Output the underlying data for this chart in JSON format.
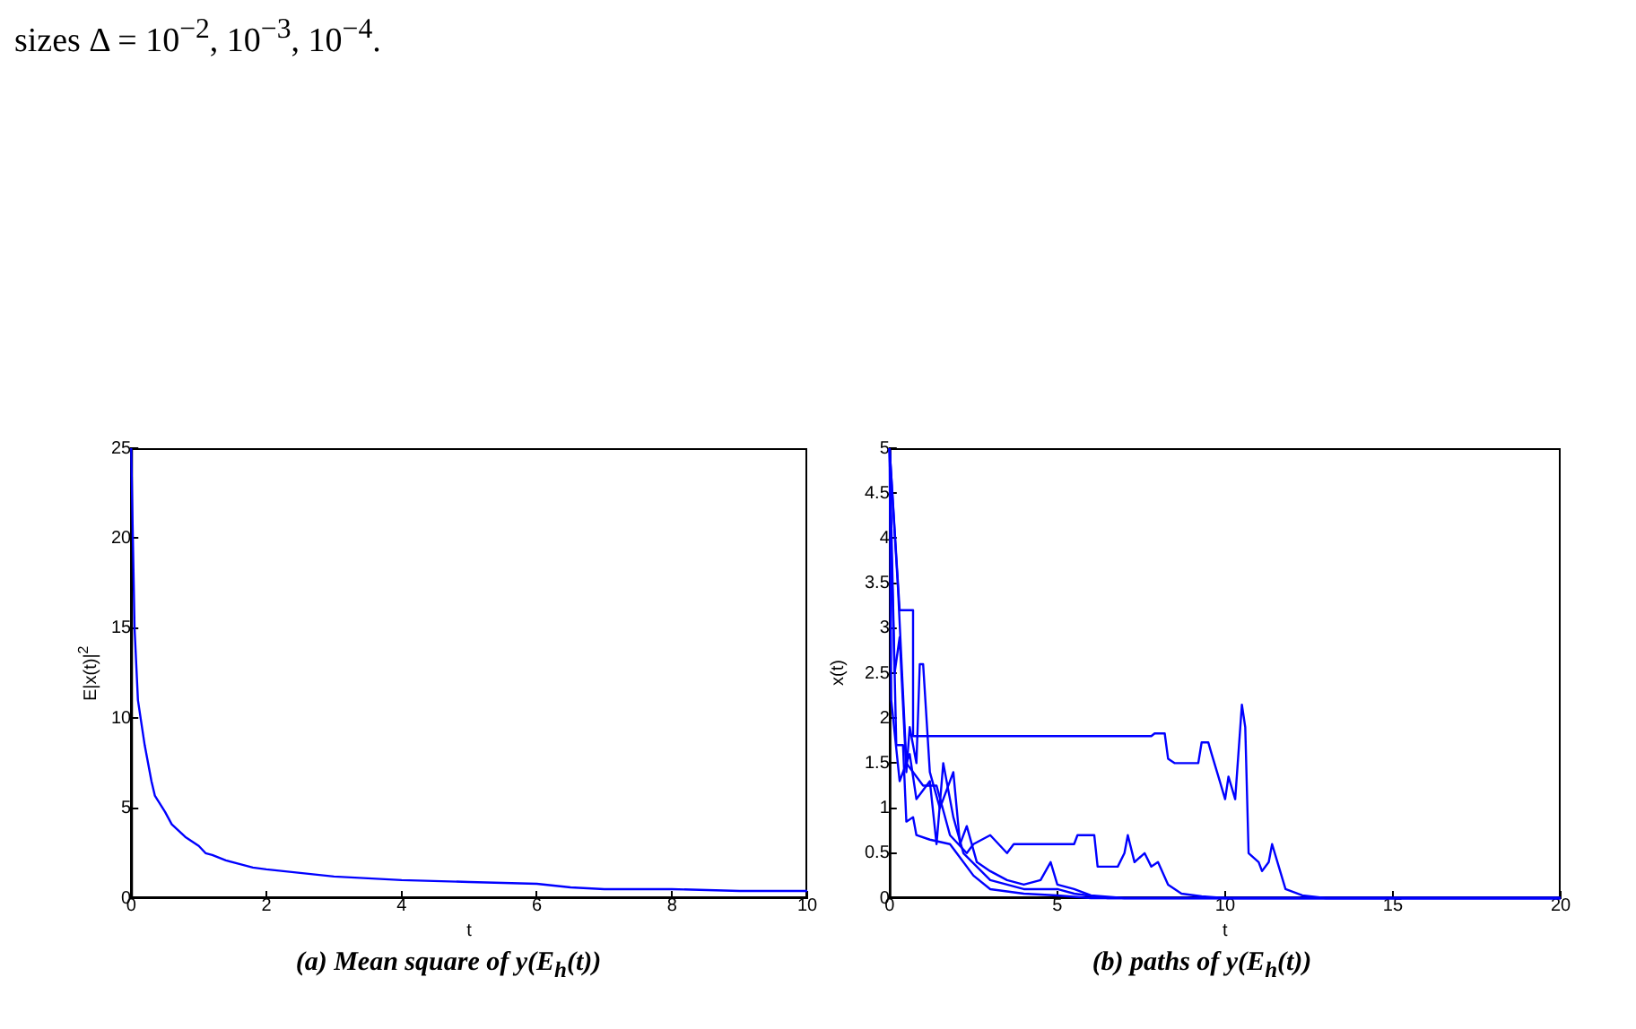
{
  "chart_data": [
    {
      "type": "line",
      "title": "(a) Mean square of y(E$_{h}$(t))",
      "xlabel": "t",
      "ylabel": "E|x(t)|$^{2}$",
      "annotations": [
        "sizes Δ = 10$^{−2}$,  10$^{−3}$,  10$^{−4}$."
      ],
      "xlim": [
        0,
        10
      ],
      "ylim": [
        0,
        25
      ],
      "xticks": [
        0,
        2,
        4,
        6,
        8,
        10
      ],
      "yticks": [
        0,
        5,
        10,
        15,
        20,
        25
      ],
      "grid": false,
      "legend": false,
      "marker": "none",
      "series": [
        {
          "color": "#0000ff",
          "x": [
            0,
            0.05,
            0.1,
            0.2,
            0.3,
            0.35,
            0.5,
            0.6,
            0.8,
            1.0,
            1.1,
            1.2,
            1.4,
            1.6,
            1.8,
            2,
            2.5,
            3,
            3.5,
            4,
            5,
            6,
            6.5,
            7,
            8,
            9,
            10
          ],
          "values": [
            25,
            15,
            11,
            8.5,
            6.5,
            5.7,
            4.8,
            4.1,
            3.4,
            2.9,
            2.5,
            2.4,
            2.1,
            1.9,
            1.7,
            1.6,
            1.4,
            1.2,
            1.1,
            1.0,
            0.9,
            0.8,
            0.6,
            0.5,
            0.5,
            0.4,
            0.4
          ]
        }
      ]
    },
    {
      "type": "line",
      "title": "(b) paths of y(E$_{h}$(t))",
      "xlabel": "t",
      "ylabel": "x(t)",
      "xlim": [
        0,
        20
      ],
      "ylim": [
        0,
        5
      ],
      "xticks": [
        0,
        5,
        10,
        15,
        20
      ],
      "yticks": [
        0,
        0.5,
        1,
        1.5,
        2,
        2.5,
        3,
        3.5,
        4,
        4.5,
        5
      ],
      "grid": false,
      "legend": false,
      "marker": "none",
      "series": [
        {
          "color": "#0000ff",
          "x": [
            0,
            0.3,
            0.7,
            0.7,
            7.8,
            7.9,
            8.2,
            8.3,
            8.5,
            9.2,
            9.3,
            9.5,
            9.6,
            9.8,
            10,
            10.1,
            10.3,
            10.5,
            10.6,
            10.7,
            11,
            11.1,
            11.3,
            11.4,
            11.6,
            11.8,
            12.3,
            13,
            20
          ],
          "values": [
            5,
            3.2,
            3.2,
            1.8,
            1.8,
            1.83,
            1.83,
            1.55,
            1.5,
            1.5,
            1.73,
            1.73,
            1.6,
            1.35,
            1.1,
            1.35,
            1.1,
            2.15,
            1.9,
            0.5,
            0.4,
            0.3,
            0.4,
            0.6,
            0.35,
            0.1,
            0.03,
            0,
            0
          ]
        },
        {
          "color": "#0000ff",
          "x": [
            0,
            0.25,
            0.5,
            1,
            1.4,
            1.8,
            2.3,
            2.5,
            3,
            3.5,
            3.7,
            5.5,
            5.6,
            6.1,
            6.2,
            6.8,
            7,
            7.1,
            7.3,
            7.6,
            7.8,
            8,
            8.3,
            8.7,
            9.3,
            10,
            20
          ],
          "values": [
            5,
            3.45,
            1.5,
            1.25,
            1.25,
            0.7,
            0.5,
            0.6,
            0.7,
            0.5,
            0.6,
            0.6,
            0.7,
            0.7,
            0.35,
            0.35,
            0.5,
            0.7,
            0.4,
            0.5,
            0.35,
            0.4,
            0.15,
            0.05,
            0.02,
            0,
            0
          ]
        },
        {
          "color": "#0000ff",
          "x": [
            0,
            0.05,
            0.15,
            0.3,
            0.5,
            0.6,
            0.8,
            0.9,
            1,
            1.2,
            1.5,
            1.9,
            2.1,
            2.3,
            2.6,
            3,
            3.5,
            4,
            4.5,
            4.8,
            5,
            5.5,
            6,
            7,
            20
          ],
          "values": [
            5,
            3.9,
            2.5,
            2.9,
            1.4,
            1.9,
            1.5,
            2.6,
            2.6,
            1.4,
            1,
            1.4,
            0.6,
            0.8,
            0.4,
            0.3,
            0.2,
            0.15,
            0.2,
            0.4,
            0.15,
            0.1,
            0.03,
            0,
            0
          ]
        },
        {
          "color": "#0000ff",
          "x": [
            0,
            0.2,
            0.4,
            0.5,
            0.7,
            0.8,
            1.2,
            1.8,
            2,
            2.5,
            3,
            4,
            5,
            6,
            20
          ],
          "values": [
            5,
            1.7,
            1.7,
            0.85,
            0.9,
            0.7,
            0.65,
            0.6,
            0.5,
            0.25,
            0.1,
            0.05,
            0.03,
            0,
            0
          ]
        },
        {
          "color": "#0000ff",
          "x": [
            0,
            0.05,
            0.3,
            0.6,
            0.8,
            1.2,
            1.4,
            1.6,
            1.9,
            2.2,
            3,
            4,
            5,
            5.5,
            6.5,
            20
          ],
          "values": [
            5,
            2.2,
            1.3,
            1.6,
            1.1,
            1.3,
            0.6,
            1.5,
            0.9,
            0.5,
            0.2,
            0.1,
            0.1,
            0.05,
            0,
            0
          ]
        }
      ]
    }
  ]
}
